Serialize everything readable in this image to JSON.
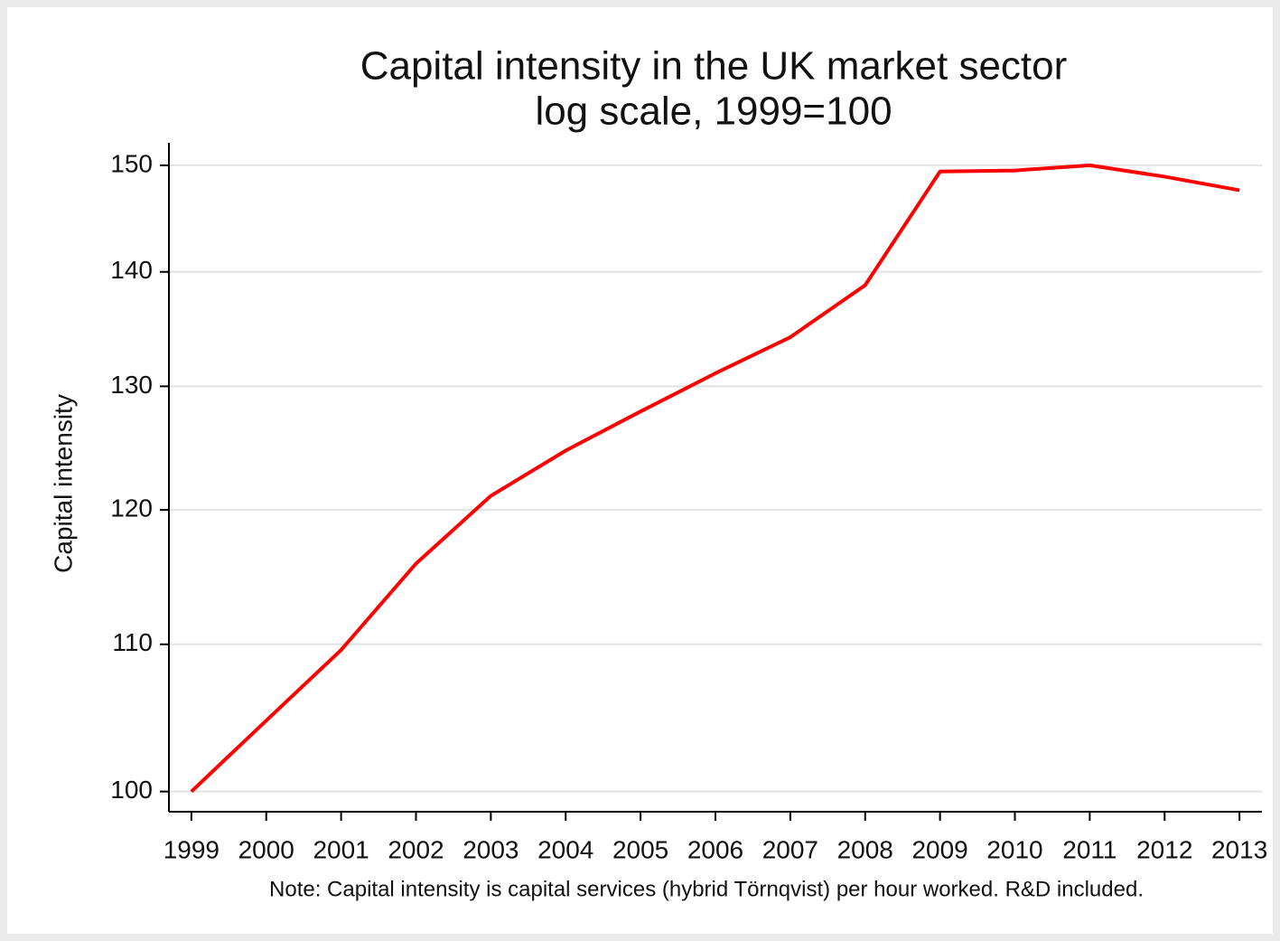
{
  "chart_data": {
    "type": "line",
    "title": "Capital intensity in the UK market sector",
    "subtitle": "log scale, 1999=100",
    "y_label": "Capital intensity",
    "note": "Note:  Capital intensity is capital services (hybrid Törnqvist) per hour worked. R&D included.",
    "x": [
      1999,
      2000,
      2001,
      2002,
      2003,
      2004,
      2005,
      2006,
      2007,
      2008,
      2009,
      2010,
      2011,
      2012,
      2013
    ],
    "series": [
      {
        "name": "Capital intensity",
        "color": "#ff0000",
        "values": [
          100,
          104.7,
          109.6,
          115.9,
          121.1,
          124.7,
          127.9,
          131.1,
          134.2,
          138.8,
          149.4,
          149.5,
          150.0,
          148.9,
          147.6
        ]
      }
    ],
    "xlim": [
      1998.7,
      2013.3
    ],
    "xticks": [
      1999,
      2000,
      2001,
      2002,
      2003,
      2004,
      2005,
      2006,
      2007,
      2008,
      2009,
      2010,
      2011,
      2012,
      2013
    ],
    "ylim": [
      98.7,
      152.2
    ],
    "yticks": [
      100,
      110,
      120,
      130,
      140,
      150
    ],
    "log_scale": true,
    "grid": true
  }
}
